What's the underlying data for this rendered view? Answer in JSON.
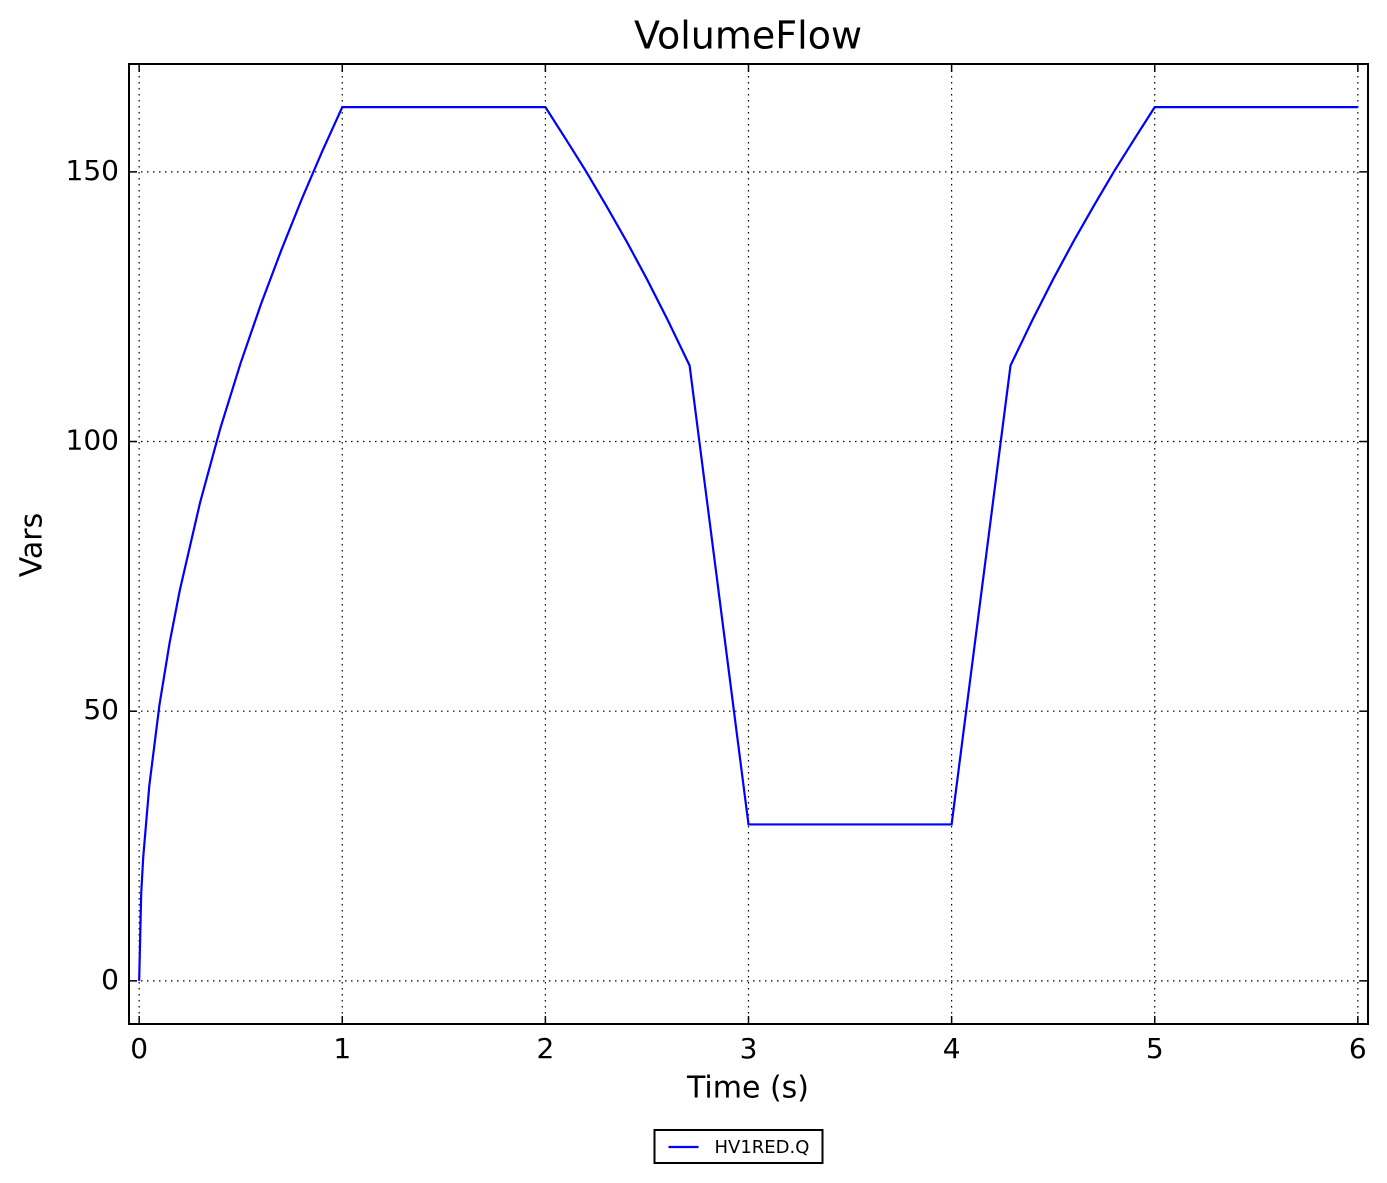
{
  "chart_data": {
    "type": "line",
    "title": "VolumeFlow",
    "x_label": "Time (s)",
    "y_label": "Vars",
    "x": [
      0,
      0.01,
      0.02,
      0.05,
      0.1,
      0.15,
      0.2,
      0.3,
      0.4,
      0.5,
      0.6,
      0.7,
      0.8,
      0.9,
      1.0,
      2.0,
      2.1,
      2.2,
      2.3,
      2.4,
      2.5,
      2.6,
      2.71,
      3.0,
      4.0,
      4.29,
      4.4,
      4.5,
      4.6,
      4.7,
      4.8,
      4.9,
      5.0,
      6.0
    ],
    "series": [
      {
        "name": "HV1RED.Q",
        "color": "#0000ff",
        "values": [
          0,
          16.2,
          22.9,
          36.2,
          51.2,
          62.7,
          72.4,
          88.7,
          102.5,
          114.6,
          125.5,
          135.5,
          144.9,
          153.7,
          162,
          162,
          156.1,
          150.1,
          143.7,
          137.1,
          130.1,
          122.7,
          114.1,
          29,
          29,
          114.1,
          122.7,
          130.1,
          137.1,
          143.7,
          150.1,
          156.1,
          162,
          162
        ]
      }
    ],
    "xlim": [
      -0.05,
      6.05
    ],
    "ylim": [
      -8,
      170
    ],
    "xticks": [
      0,
      1,
      2,
      3,
      4,
      5,
      6
    ],
    "yticks": [
      0,
      50,
      100,
      150
    ],
    "grid": true,
    "legend": "lower center"
  }
}
